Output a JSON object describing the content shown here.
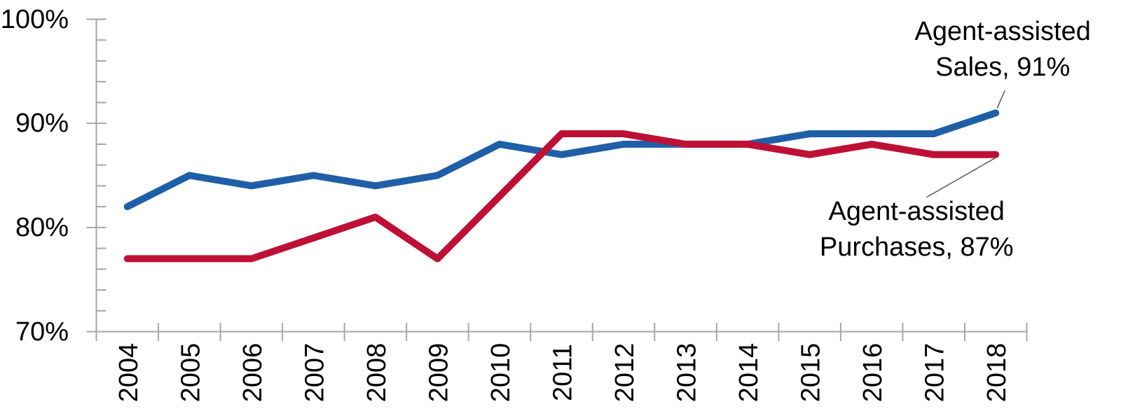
{
  "chart_data": {
    "type": "line",
    "title": "",
    "x_categories": [
      "2004",
      "2005",
      "2006",
      "2007",
      "2008",
      "2009",
      "2010",
      "2011",
      "2012",
      "2013",
      "2014",
      "2015",
      "2016",
      "2017",
      "2018"
    ],
    "series": [
      {
        "name": "Agent-assisted Sales",
        "color": "#1F5FA8",
        "values": [
          82,
          85,
          84,
          85,
          84,
          85,
          88,
          87,
          88,
          88,
          88,
          89,
          89,
          89,
          91
        ]
      },
      {
        "name": "Agent-assisted Purchases",
        "color": "#BE1034",
        "values": [
          77,
          77,
          77,
          79,
          81,
          77,
          83,
          89,
          89,
          88,
          88,
          87,
          88,
          87,
          87
        ]
      }
    ],
    "y_axis": {
      "min": 70,
      "max": 100,
      "major_step": 10,
      "minor_step": 2,
      "tick_labels": [
        "100%",
        "90%",
        "80%",
        "70%"
      ],
      "unit": "percent"
    },
    "x_axis": {
      "label": "",
      "tick_style": "between-categories"
    },
    "grid": "off",
    "legend": "none-direct-labels",
    "annotations": [
      {
        "series": "Agent-assisted Sales",
        "line1": "Agent-assisted",
        "line2": "Sales, 91%",
        "value": 91,
        "year": "2018"
      },
      {
        "series": "Agent-assisted Purchases",
        "line1": "Agent-assisted",
        "line2": "Purchases, 87%",
        "value": 87,
        "year": "2018"
      }
    ]
  },
  "colors": {
    "background": "#FFFFFF",
    "axis": "#A6A6A6",
    "leader_line": "#595959",
    "text": "#000000",
    "sales_line": "#1F5FA8",
    "purchases_line": "#BE1034"
  }
}
